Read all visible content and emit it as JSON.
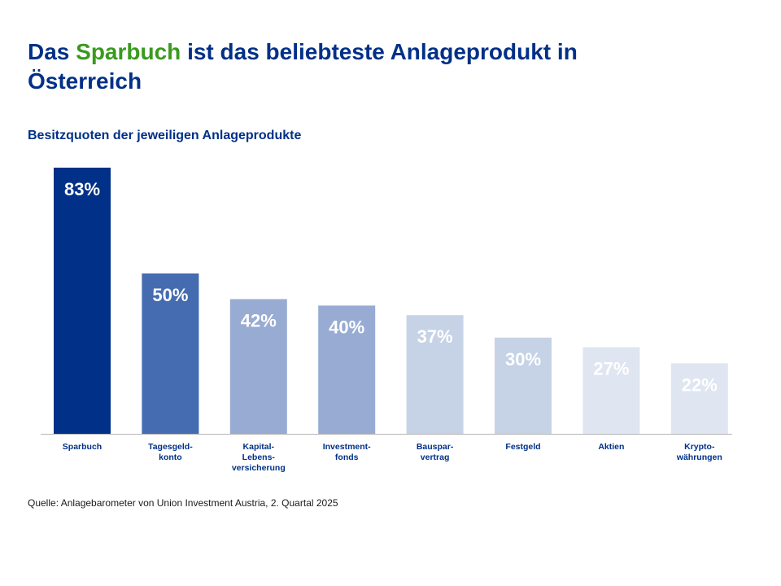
{
  "header": {
    "title_part1": "Das ",
    "title_accent": "Sparbuch",
    "title_part2": " ist das beliebteste Anlageprodukt in Österreich",
    "subtitle": "Besitzquoten der jeweiligen Anlageprodukte"
  },
  "source": "Quelle: Anlagebarometer von Union Investment Austria, 2. Quartal 2025",
  "colors": {
    "title": "#003087",
    "accent": "#3a9a1e"
  },
  "chart_data": {
    "type": "bar",
    "title": "Besitzquoten der jeweiligen Anlageprodukte",
    "xlabel": "",
    "ylabel": "",
    "ylim": [
      0,
      100
    ],
    "grid": false,
    "legend": "none",
    "unit": "%",
    "categories": [
      [
        "Sparbuch"
      ],
      [
        "Tagesgeld-",
        "konto"
      ],
      [
        "Kapital-",
        "Lebens-",
        "versicherung"
      ],
      [
        "Investment-",
        "fonds"
      ],
      [
        "Bauspar-",
        "vertrag"
      ],
      [
        "Festgeld"
      ],
      [
        "Aktien"
      ],
      [
        "Krypto-",
        "währungen"
      ]
    ],
    "values": [
      83,
      50,
      42,
      40,
      37,
      30,
      27,
      22
    ],
    "data_labels": [
      "83%",
      "50%",
      "42%",
      "40%",
      "37%",
      "30%",
      "27%",
      "22%"
    ],
    "bar_colors": [
      "#003087",
      "#456bb0",
      "#98abd3",
      "#98abd3",
      "#c6d3e6",
      "#c6d3e6",
      "#dfe6f1",
      "#dfe6f1"
    ],
    "category_label_color": "#003087",
    "data_label_color": "#ffffff"
  }
}
